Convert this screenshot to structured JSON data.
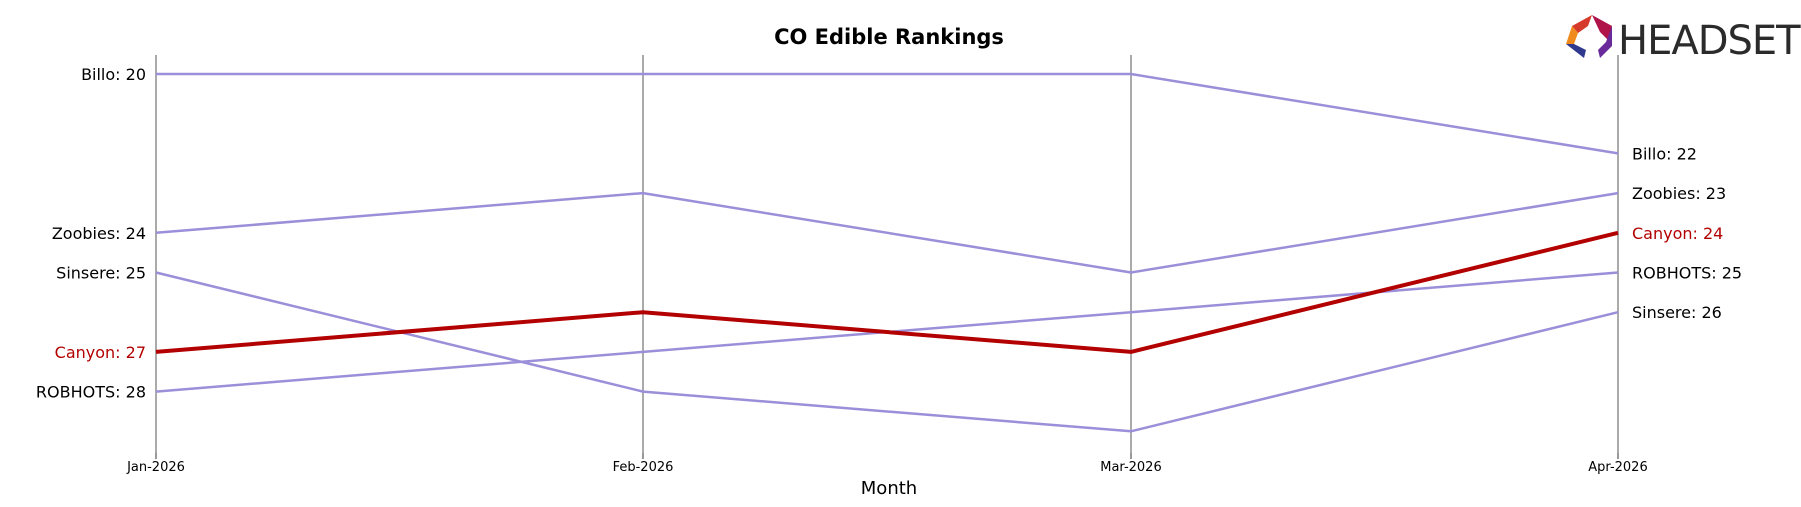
{
  "chart_data": {
    "type": "line",
    "title": "CO Edible Rankings",
    "xlabel": "Month",
    "ylabel": "",
    "x": [
      "Jan-2026",
      "Feb-2026",
      "Mar-2026",
      "Apr-2026"
    ],
    "y_inverted": true,
    "ylim": [
      19.5,
      30.5
    ],
    "grid": "vertical lines at each month",
    "series": [
      {
        "name": "Billo",
        "values": [
          20,
          20,
          20,
          22
        ],
        "color": "#9b8fd9",
        "highlight": false
      },
      {
        "name": "Zoobies",
        "values": [
          24,
          23,
          25,
          23
        ],
        "color": "#9b8fd9",
        "highlight": false
      },
      {
        "name": "Sinsere",
        "values": [
          25,
          28,
          29,
          26
        ],
        "color": "#9b8fd9",
        "highlight": false
      },
      {
        "name": "Canyon",
        "values": [
          27,
          26,
          27,
          24
        ],
        "color": "#b30000",
        "highlight": true
      },
      {
        "name": "ROBHOTS",
        "values": [
          28,
          27,
          26,
          25
        ],
        "color": "#9b8fd9",
        "highlight": false
      }
    ],
    "start_labels": [
      "Billo: 20",
      "Zoobies: 24",
      "Sinsere: 25",
      "Canyon: 27",
      "ROBHOTS: 28"
    ],
    "end_labels": [
      "Billo: 22",
      "Zoobies: 23",
      "Canyon: 24",
      "ROBHOTS: 25",
      "Sinsere: 26"
    ]
  },
  "logo": {
    "text": "HEADSET",
    "icon": "headset-logo-icon"
  },
  "colors": {
    "highlight": "#b30000",
    "other": "#9b8fd9",
    "gridline": "#aaaaaa"
  }
}
